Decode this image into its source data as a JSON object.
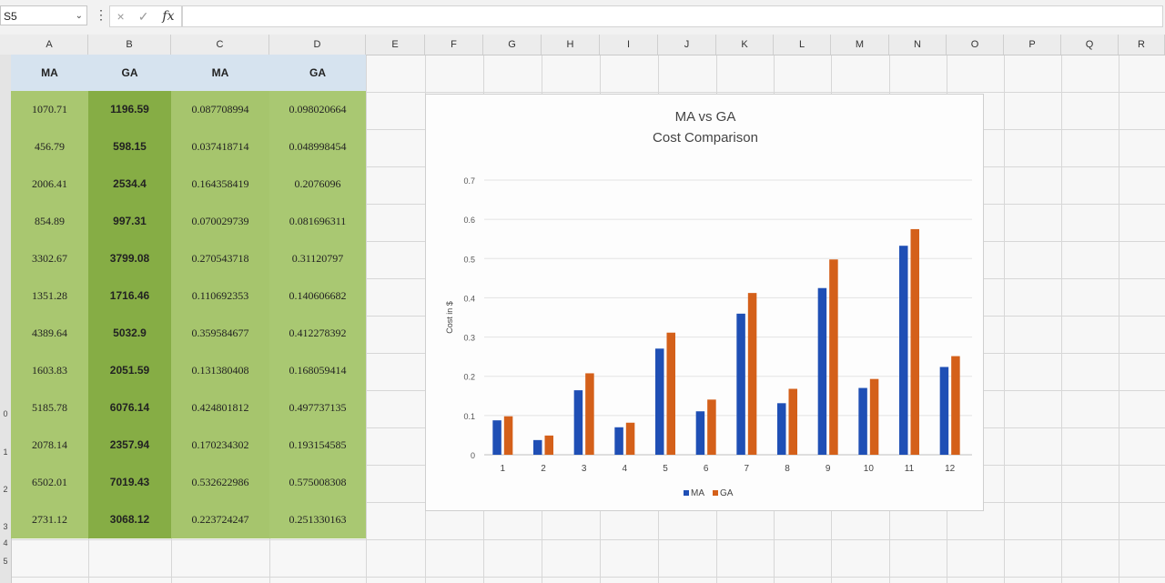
{
  "formula_bar": {
    "name_box": "S5",
    "dots": "⋮",
    "cancel_icon": "×",
    "enter_icon": "✓",
    "fx_label": "fx",
    "value": ""
  },
  "columns": [
    "A",
    "B",
    "C",
    "D",
    "E",
    "F",
    "G",
    "H",
    "I",
    "J",
    "K",
    "L",
    "M",
    "N",
    "O",
    "P",
    "Q",
    "R"
  ],
  "rows": [
    "0",
    "1",
    "2",
    "3",
    "4",
    "5"
  ],
  "table": {
    "headers": [
      "MA",
      "GA",
      "MA",
      "GA"
    ],
    "rows": [
      [
        "1070.71",
        "1196.59",
        "0.087708994",
        "0.098020664"
      ],
      [
        "456.79",
        "598.15",
        "0.037418714",
        "0.048998454"
      ],
      [
        "2006.41",
        "2534.4",
        "0.164358419",
        "0.2076096"
      ],
      [
        "854.89",
        "997.31",
        "0.070029739",
        "0.081696311"
      ],
      [
        "3302.67",
        "3799.08",
        "0.270543718",
        "0.31120797"
      ],
      [
        "1351.28",
        "1716.46",
        "0.110692353",
        "0.140606682"
      ],
      [
        "4389.64",
        "5032.9",
        "0.359584677",
        "0.412278392"
      ],
      [
        "1603.83",
        "2051.59",
        "0.131380408",
        "0.168059414"
      ],
      [
        "5185.78",
        "6076.14",
        "0.424801812",
        "0.497737135"
      ],
      [
        "2078.14",
        "2357.94",
        "0.170234302",
        "0.193154585"
      ],
      [
        "6502.01",
        "7019.43",
        "0.532622986",
        "0.575008308"
      ],
      [
        "2731.12",
        "3068.12",
        "0.223724247",
        "0.251330163"
      ]
    ]
  },
  "chart_data": {
    "type": "bar",
    "title": "MA vs GA",
    "subtitle": "Cost Comparison",
    "xlabel": "",
    "ylabel": "Cost in $",
    "categories": [
      "1",
      "2",
      "3",
      "4",
      "5",
      "6",
      "7",
      "8",
      "9",
      "10",
      "11",
      "12"
    ],
    "series": [
      {
        "name": "MA",
        "color": "#1f4fb5",
        "values": [
          0.087708994,
          0.037418714,
          0.164358419,
          0.070029739,
          0.270543718,
          0.110692353,
          0.359584677,
          0.131380408,
          0.424801812,
          0.170234302,
          0.532622986,
          0.223724247
        ]
      },
      {
        "name": "GA",
        "color": "#d4601a",
        "values": [
          0.098020664,
          0.048998454,
          0.2076096,
          0.081696311,
          0.31120797,
          0.140606682,
          0.412278392,
          0.168059414,
          0.497737135,
          0.193154585,
          0.575008308,
          0.251330163
        ]
      }
    ],
    "yticks": [
      "0",
      "0.1",
      "0.2",
      "0.3",
      "0.4",
      "0.5",
      "0.6",
      "0.7"
    ],
    "ylim": [
      0,
      0.7
    ],
    "grid": true,
    "legend": "bottom"
  }
}
